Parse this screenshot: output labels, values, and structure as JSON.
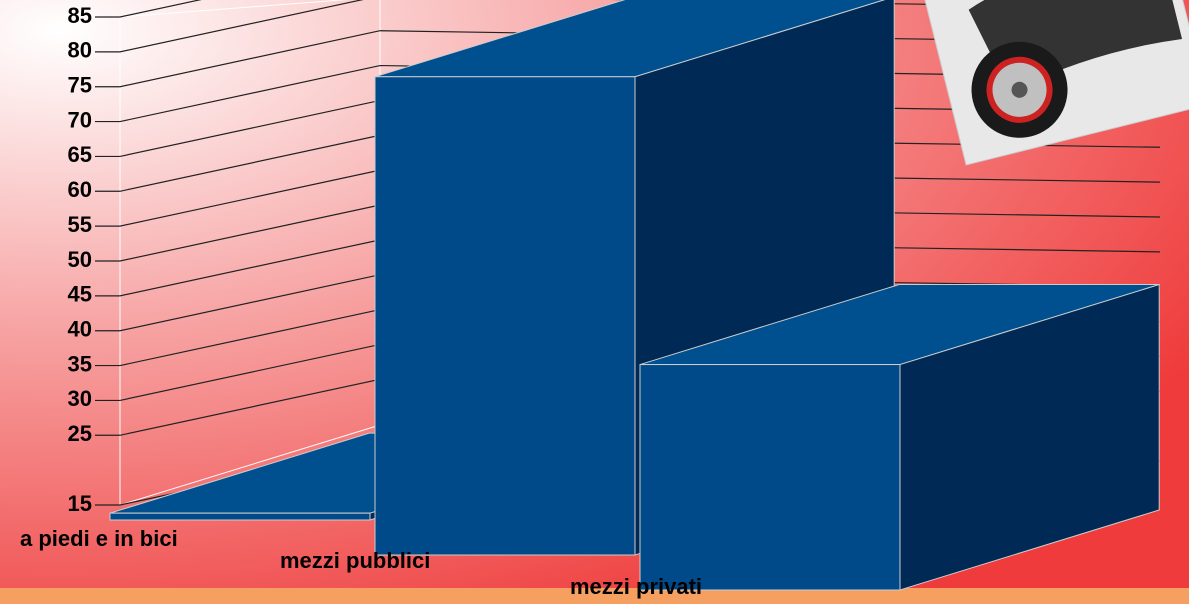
{
  "chart_data": {
    "type": "bar3d",
    "categories": [
      "a piedi e in bici",
      "mezzi pubblici",
      "mezzi privati"
    ],
    "values": [
      16,
      85,
      48
    ],
    "color": "#004a8a",
    "ylim": [
      15,
      85
    ],
    "yticks": [
      15,
      25,
      30,
      35,
      40,
      45,
      50,
      55,
      60,
      65,
      70,
      75,
      80,
      85
    ],
    "grid": true
  }
}
